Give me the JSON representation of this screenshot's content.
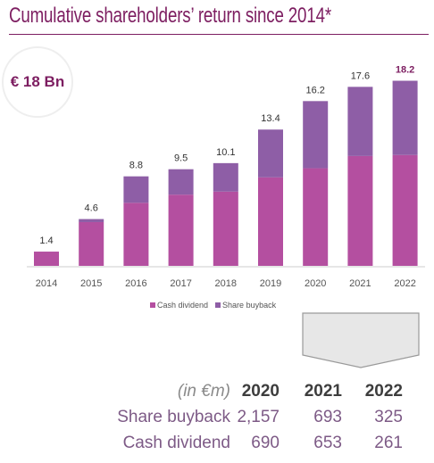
{
  "title": "Cumulative shareholders’ return since 2014*",
  "badge": "€ 18 Bn",
  "colors": {
    "cash_dividend": "#b44fa0",
    "share_buyback": "#8e5ea6",
    "title": "#7d1e61",
    "highlight_label": "#7d1e61"
  },
  "chart_data": {
    "type": "bar",
    "stacked": true,
    "categories": [
      "2014",
      "2015",
      "2016",
      "2017",
      "2018",
      "2019",
      "2020",
      "2021",
      "2022"
    ],
    "series": [
      {
        "name": "Cash dividend",
        "values": [
          1.4,
          4.3,
          6.2,
          7.0,
          7.3,
          8.7,
          9.6,
          10.8,
          10.9
        ]
      },
      {
        "name": "Share buyback",
        "values": [
          0.0,
          0.3,
          2.6,
          2.5,
          2.8,
          4.7,
          6.6,
          6.8,
          7.3
        ]
      }
    ],
    "totals": [
      "1.4",
      "4.6",
      "8.8",
      "9.5",
      "10.1",
      "13.4",
      "16.2",
      "17.6",
      "18.2"
    ],
    "highlight_total_index": 8,
    "ylim": [
      0,
      20
    ],
    "legend": "bottom"
  },
  "table": {
    "unit": "(in €m)",
    "years": [
      "2020",
      "2021",
      "2022"
    ],
    "rows": [
      {
        "label": "Share buyback",
        "values": [
          "2,157",
          "693",
          "325"
        ]
      },
      {
        "label": "Cash dividend",
        "values": [
          "690",
          "653",
          "261"
        ]
      }
    ]
  }
}
